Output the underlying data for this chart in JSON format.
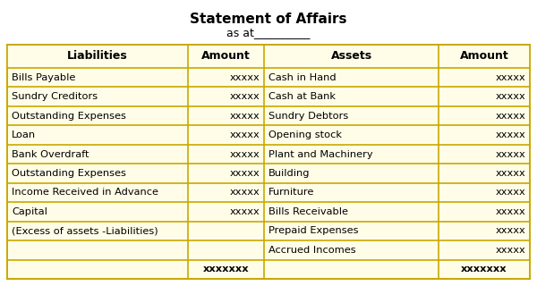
{
  "title": "Statement of Affairs",
  "subtitle": "as at__________",
  "cell_bg": "#FFFDE8",
  "border_color": "#C8A800",
  "liabilities_col_header": "Liabilities",
  "liabilities_amount_header": "Amount",
  "assets_col_header": "Assets",
  "assets_amount_header": "Amount",
  "liabilities": [
    [
      "Bills Payable",
      "xxxxx"
    ],
    [
      "Sundry Creditors",
      "xxxxx"
    ],
    [
      "Outstanding Expenses",
      "xxxxx"
    ],
    [
      "Loan",
      "xxxxx"
    ],
    [
      "Bank Overdraft",
      "xxxxx"
    ],
    [
      "Outstanding Expenses",
      "xxxxx"
    ],
    [
      "Income Received in Advance",
      "xxxxx"
    ],
    [
      "Capital",
      "xxxxx"
    ],
    [
      "(Excess of assets -Liabilities)",
      ""
    ]
  ],
  "assets": [
    [
      "Cash in Hand",
      "xxxxx"
    ],
    [
      "Cash at Bank",
      "xxxxx"
    ],
    [
      "Sundry Debtors",
      "xxxxx"
    ],
    [
      "Opening stock",
      "xxxxx"
    ],
    [
      "Plant and Machinery",
      "xxxxx"
    ],
    [
      "Building",
      "xxxxx"
    ],
    [
      "Furniture",
      "xxxxx"
    ],
    [
      "Bills Receivable",
      "xxxxx"
    ],
    [
      "Prepaid Expenses",
      "xxxxx"
    ],
    [
      "Accrued Incomes",
      "xxxxx"
    ]
  ],
  "total_liabilities": "xxxxxxx",
  "total_assets": "xxxxxxx",
  "figsize": [
    6.0,
    3.2
  ],
  "dpi": 100
}
